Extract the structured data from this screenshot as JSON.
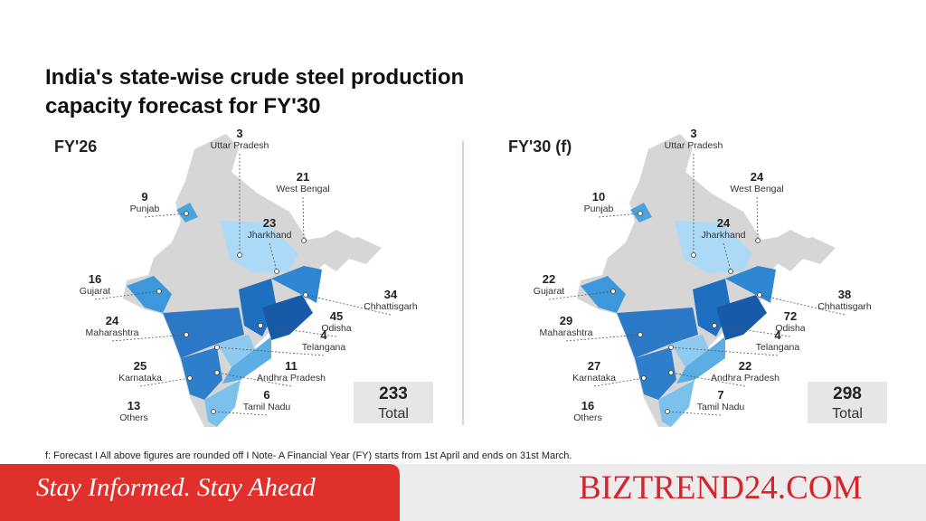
{
  "title": "India's state-wise crude steel production capacity forecast for FY'30",
  "panels": [
    {
      "label": "FY'26",
      "states": [
        {
          "name": "Uttar Pradesh",
          "value": 3
        },
        {
          "name": "West Bengal",
          "value": 21
        },
        {
          "name": "Punjab",
          "value": 9
        },
        {
          "name": "Jharkhand",
          "value": 23
        },
        {
          "name": "Gujarat",
          "value": 16
        },
        {
          "name": "Chhattisgarh",
          "value": 34
        },
        {
          "name": "Maharashtra",
          "value": 24
        },
        {
          "name": "Odisha",
          "value": 45
        },
        {
          "name": "Telangana",
          "value": 4
        },
        {
          "name": "Karnataka",
          "value": 25
        },
        {
          "name": "Andhra Pradesh",
          "value": 11
        },
        {
          "name": "Tamil Nadu",
          "value": 6
        },
        {
          "name": "Others",
          "value": 13
        }
      ],
      "total": {
        "value": 233,
        "label": "Total"
      }
    },
    {
      "label": "FY'30 (f)",
      "states": [
        {
          "name": "Uttar Pradesh",
          "value": 3
        },
        {
          "name": "West Bengal",
          "value": 24
        },
        {
          "name": "Punjab",
          "value": 10
        },
        {
          "name": "Jharkhand",
          "value": 24
        },
        {
          "name": "Gujarat",
          "value": 22
        },
        {
          "name": "Chhattisgarh",
          "value": 38
        },
        {
          "name": "Maharashtra",
          "value": 29
        },
        {
          "name": "Odisha",
          "value": 72
        },
        {
          "name": "Telangana",
          "value": 4
        },
        {
          "name": "Karnataka",
          "value": 27
        },
        {
          "name": "Andhra Pradesh",
          "value": 22
        },
        {
          "name": "Tamil Nadu",
          "value": 7
        },
        {
          "name": "Others",
          "value": 16
        }
      ],
      "total": {
        "value": 298,
        "label": "Total"
      }
    }
  ],
  "footnote": "f: Forecast  I  All above figures are rounded off  I  Note- A Financial Year (FY) starts from 1st April and ends on 31st March.",
  "banner": {
    "tagline": "Stay Informed. Stay Ahead",
    "brand": "BIZTREND24.COM"
  }
}
